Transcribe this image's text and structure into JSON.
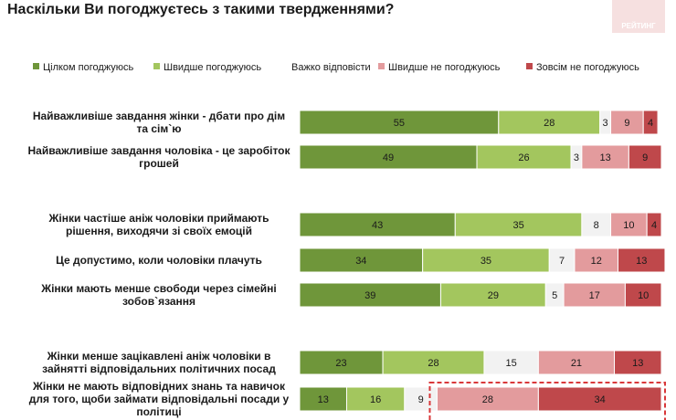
{
  "chart_data": {
    "type": "bar",
    "orientation": "horizontal",
    "stacked": true,
    "title": "Наскільки Ви погоджуєтесь з такими твердженнями?",
    "categories": [
      "Найважливіше завдання жінки - дбати про дім та сім`ю",
      "Найважливіше завдання чоловіка - це заробіток грошей",
      "Жінки частіше аніж чоловіки приймають рішення, виходячи зі своїх емоцій",
      "Це допустимо, коли чоловіки плачуть",
      "Жінки мають менше свободи через сімейні зобов`язання",
      "Жінки менше зацікавлені аніж чоловіки в зайнятті відповідальних політичних посад",
      "Жінки не мають відповідних знань та навичок для того, щоби займати відповідальні посади у політиці"
    ],
    "series": [
      {
        "name": "Цілком погоджуюсь",
        "color": "#6f963a",
        "values": [
          55,
          49,
          43,
          34,
          39,
          23,
          13
        ]
      },
      {
        "name": "Швидше погоджуюсь",
        "color": "#a3c65e",
        "values": [
          28,
          26,
          35,
          35,
          29,
          28,
          16
        ]
      },
      {
        "name": "Важко відповісти",
        "color": "#f2f2f2",
        "values": [
          3,
          3,
          8,
          7,
          5,
          15,
          9
        ]
      },
      {
        "name": "Швидше не погоджуюсь",
        "color": "#e39b9d",
        "values": [
          9,
          13,
          10,
          12,
          17,
          21,
          28
        ]
      },
      {
        "name": "Зовсім не погоджуюсь",
        "color": "#bf484b",
        "values": [
          4,
          9,
          4,
          13,
          10,
          13,
          34
        ]
      }
    ],
    "xlim": [
      0,
      100
    ],
    "legend_position": "top",
    "highlight_outline_color": "#d9383a"
  }
}
